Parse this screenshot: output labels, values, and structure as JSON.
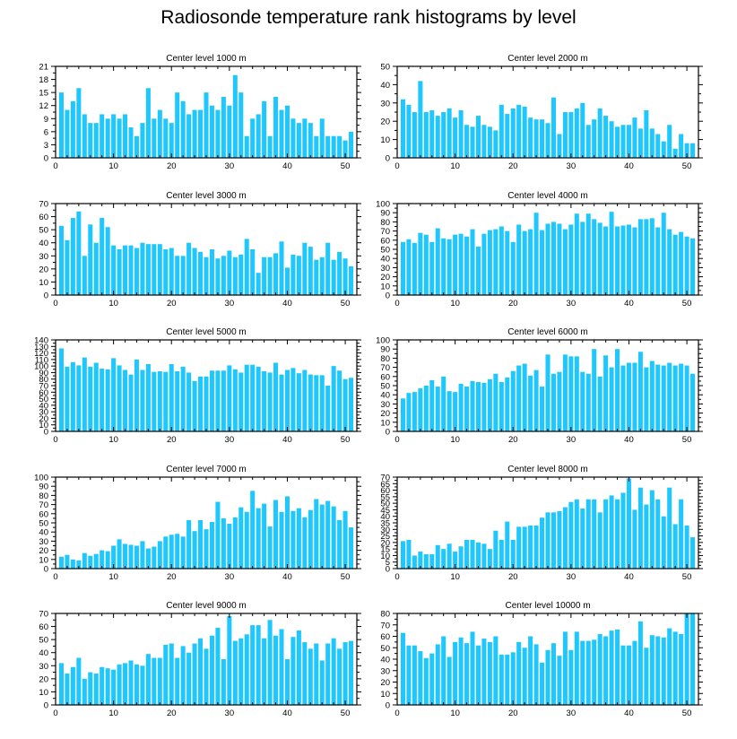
{
  "chart_data": {
    "title": "Radiosonde temperature rank histograms by level",
    "bar_color": "#1ec8ff",
    "panels": [
      {
        "type": "bar",
        "title": "Center level 1000 m",
        "xlim": [
          0,
          52
        ],
        "ylim": [
          0,
          21
        ],
        "xticks": [
          0,
          10,
          20,
          30,
          40,
          50
        ],
        "yticks": [
          0,
          3,
          6,
          9,
          12,
          15,
          18,
          21
        ],
        "x": [
          1,
          2,
          3,
          4,
          5,
          6,
          7,
          8,
          9,
          10,
          11,
          12,
          13,
          14,
          15,
          16,
          17,
          18,
          19,
          20,
          21,
          22,
          23,
          24,
          25,
          26,
          27,
          28,
          29,
          30,
          31,
          32,
          33,
          34,
          35,
          36,
          37,
          38,
          39,
          40,
          41,
          42,
          43,
          44,
          45,
          46,
          47,
          48,
          49,
          50,
          51
        ],
        "values": [
          15,
          11,
          13,
          16,
          10,
          8,
          8,
          10,
          9,
          10,
          9,
          10,
          7,
          5,
          8,
          16,
          9,
          11,
          9,
          8,
          15,
          13,
          10,
          11,
          11,
          15,
          12,
          11,
          14,
          12,
          19,
          15,
          5,
          9,
          10,
          13,
          5,
          14,
          11,
          12,
          9,
          8,
          9,
          8,
          5,
          9,
          5,
          5,
          5,
          4,
          6
        ]
      },
      {
        "type": "bar",
        "title": "Center level 2000 m",
        "xlim": [
          0,
          52
        ],
        "ylim": [
          0,
          50
        ],
        "xticks": [
          0,
          10,
          20,
          30,
          40,
          50
        ],
        "yticks": [
          0,
          10,
          20,
          30,
          40,
          50
        ],
        "x": [
          1,
          2,
          3,
          4,
          5,
          6,
          7,
          8,
          9,
          10,
          11,
          12,
          13,
          14,
          15,
          16,
          17,
          18,
          19,
          20,
          21,
          22,
          23,
          24,
          25,
          26,
          27,
          28,
          29,
          30,
          31,
          32,
          33,
          34,
          35,
          36,
          37,
          38,
          39,
          40,
          41,
          42,
          43,
          44,
          45,
          46,
          47,
          48,
          49,
          50,
          51
        ],
        "values": [
          32,
          29,
          25,
          42,
          25,
          26,
          23,
          25,
          27,
          22,
          26,
          18,
          17,
          23,
          18,
          17,
          15,
          29,
          24,
          27,
          29,
          28,
          22,
          21,
          21,
          19,
          33,
          13,
          25,
          25,
          27,
          30,
          18,
          21,
          27,
          23,
          20,
          17,
          18,
          18,
          22,
          16,
          26,
          16,
          13,
          9,
          18,
          5,
          13,
          8,
          8
        ]
      },
      {
        "type": "bar",
        "title": "Center level 3000 m",
        "xlim": [
          0,
          52
        ],
        "ylim": [
          0,
          70
        ],
        "xticks": [
          0,
          10,
          20,
          30,
          40,
          50
        ],
        "yticks": [
          0,
          10,
          20,
          30,
          40,
          50,
          60,
          70
        ],
        "x": [
          1,
          2,
          3,
          4,
          5,
          6,
          7,
          8,
          9,
          10,
          11,
          12,
          13,
          14,
          15,
          16,
          17,
          18,
          19,
          20,
          21,
          22,
          23,
          24,
          25,
          26,
          27,
          28,
          29,
          30,
          31,
          32,
          33,
          34,
          35,
          36,
          37,
          38,
          39,
          40,
          41,
          42,
          43,
          44,
          45,
          46,
          47,
          48,
          49,
          50,
          51
        ],
        "values": [
          53,
          42,
          59,
          64,
          30,
          54,
          40,
          59,
          52,
          38,
          35,
          38,
          38,
          36,
          40,
          39,
          39,
          39,
          35,
          36,
          30,
          30,
          40,
          36,
          33,
          29,
          35,
          28,
          30,
          34,
          29,
          31,
          43,
          35,
          17,
          29,
          29,
          32,
          41,
          21,
          31,
          30,
          40,
          37,
          27,
          29,
          40,
          27,
          33,
          28,
          22
        ]
      },
      {
        "type": "bar",
        "title": "Center level 4000 m",
        "xlim": [
          0,
          52
        ],
        "ylim": [
          0,
          100
        ],
        "xticks": [
          0,
          10,
          20,
          30,
          40,
          50
        ],
        "yticks": [
          0,
          10,
          20,
          30,
          40,
          50,
          60,
          70,
          80,
          90,
          100
        ],
        "x": [
          1,
          2,
          3,
          4,
          5,
          6,
          7,
          8,
          9,
          10,
          11,
          12,
          13,
          14,
          15,
          16,
          17,
          18,
          19,
          20,
          21,
          22,
          23,
          24,
          25,
          26,
          27,
          28,
          29,
          30,
          31,
          32,
          33,
          34,
          35,
          36,
          37,
          38,
          39,
          40,
          41,
          42,
          43,
          44,
          45,
          46,
          47,
          48,
          49,
          50,
          51
        ],
        "values": [
          58,
          61,
          57,
          68,
          66,
          58,
          73,
          62,
          61,
          66,
          67,
          64,
          72,
          53,
          67,
          71,
          72,
          75,
          70,
          58,
          77,
          70,
          72,
          90,
          71,
          78,
          80,
          78,
          72,
          77,
          89,
          80,
          89,
          83,
          79,
          75,
          91,
          75,
          76,
          77,
          74,
          83,
          83,
          84,
          74,
          90,
          72,
          66,
          69,
          64,
          62
        ]
      },
      {
        "type": "bar",
        "title": "Center level 5000 m",
        "xlim": [
          0,
          52
        ],
        "ylim": [
          0,
          140
        ],
        "xticks": [
          0,
          10,
          20,
          30,
          40,
          50
        ],
        "yticks": [
          0,
          10,
          20,
          30,
          40,
          50,
          60,
          70,
          80,
          90,
          100,
          110,
          120,
          130,
          140
        ],
        "x": [
          1,
          2,
          3,
          4,
          5,
          6,
          7,
          8,
          9,
          10,
          11,
          12,
          13,
          14,
          15,
          16,
          17,
          18,
          19,
          20,
          21,
          22,
          23,
          24,
          25,
          26,
          27,
          28,
          29,
          30,
          31,
          32,
          33,
          34,
          35,
          36,
          37,
          38,
          39,
          40,
          41,
          42,
          43,
          44,
          45,
          46,
          47,
          48,
          49,
          50,
          51
        ],
        "values": [
          127,
          99,
          106,
          101,
          113,
          99,
          105,
          96,
          95,
          112,
          101,
          94,
          87,
          110,
          94,
          103,
          91,
          92,
          91,
          103,
          92,
          99,
          90,
          77,
          84,
          84,
          93,
          93,
          93,
          101,
          95,
          90,
          102,
          102,
          99,
          92,
          90,
          105,
          87,
          94,
          97,
          89,
          94,
          87,
          86,
          86,
          70,
          100,
          93,
          80,
          82
        ]
      },
      {
        "type": "bar",
        "title": "Center level 6000 m",
        "xlim": [
          0,
          52
        ],
        "ylim": [
          0,
          100
        ],
        "xticks": [
          0,
          10,
          20,
          30,
          40,
          50
        ],
        "yticks": [
          0,
          10,
          20,
          30,
          40,
          50,
          60,
          70,
          80,
          90,
          100
        ],
        "x": [
          1,
          2,
          3,
          4,
          5,
          6,
          7,
          8,
          9,
          10,
          11,
          12,
          13,
          14,
          15,
          16,
          17,
          18,
          19,
          20,
          21,
          22,
          23,
          24,
          25,
          26,
          27,
          28,
          29,
          30,
          31,
          32,
          33,
          34,
          35,
          36,
          37,
          38,
          39,
          40,
          41,
          42,
          43,
          44,
          45,
          46,
          47,
          48,
          49,
          50,
          51
        ],
        "values": [
          36,
          42,
          43,
          47,
          50,
          56,
          49,
          60,
          44,
          43,
          52,
          49,
          55,
          54,
          53,
          57,
          63,
          54,
          59,
          66,
          72,
          74,
          61,
          67,
          49,
          84,
          63,
          65,
          84,
          82,
          82,
          65,
          63,
          90,
          60,
          83,
          70,
          90,
          72,
          75,
          75,
          87,
          70,
          77,
          73,
          72,
          75,
          72,
          74,
          72,
          63
        ]
      },
      {
        "type": "bar",
        "title": "Center level 7000 m",
        "xlim": [
          0,
          52
        ],
        "ylim": [
          0,
          100
        ],
        "xticks": [
          0,
          10,
          20,
          30,
          40,
          50
        ],
        "yticks": [
          0,
          10,
          20,
          30,
          40,
          50,
          60,
          70,
          80,
          90,
          100
        ],
        "x": [
          1,
          2,
          3,
          4,
          5,
          6,
          7,
          8,
          9,
          10,
          11,
          12,
          13,
          14,
          15,
          16,
          17,
          18,
          19,
          20,
          21,
          22,
          23,
          24,
          25,
          26,
          27,
          28,
          29,
          30,
          31,
          32,
          33,
          34,
          35,
          36,
          37,
          38,
          39,
          40,
          41,
          42,
          43,
          44,
          45,
          46,
          47,
          48,
          49,
          50,
          51
        ],
        "values": [
          13,
          15,
          10,
          9,
          17,
          14,
          16,
          20,
          19,
          25,
          32,
          27,
          26,
          25,
          30,
          22,
          24,
          30,
          35,
          37,
          38,
          35,
          53,
          41,
          53,
          43,
          51,
          73,
          55,
          49,
          56,
          67,
          62,
          85,
          66,
          71,
          46,
          75,
          62,
          79,
          63,
          66,
          56,
          64,
          76,
          70,
          74,
          68,
          53,
          63,
          45
        ]
      },
      {
        "type": "bar",
        "title": "Center level 8000 m",
        "xlim": [
          0,
          52
        ],
        "ylim": [
          0,
          70
        ],
        "xticks": [
          0,
          10,
          20,
          30,
          40,
          50
        ],
        "yticks": [
          0,
          5,
          10,
          15,
          20,
          25,
          30,
          35,
          40,
          45,
          50,
          55,
          60,
          65,
          70
        ],
        "x": [
          1,
          2,
          3,
          4,
          5,
          6,
          7,
          8,
          9,
          10,
          11,
          12,
          13,
          14,
          15,
          16,
          17,
          18,
          19,
          20,
          21,
          22,
          23,
          24,
          25,
          26,
          27,
          28,
          29,
          30,
          31,
          32,
          33,
          34,
          35,
          36,
          37,
          38,
          39,
          40,
          41,
          42,
          43,
          44,
          45,
          46,
          47,
          48,
          49,
          50,
          51
        ],
        "values": [
          21,
          22,
          10,
          13,
          11,
          11,
          18,
          15,
          19,
          13,
          17,
          22,
          22,
          20,
          19,
          15,
          29,
          22,
          36,
          22,
          32,
          32,
          33,
          33,
          39,
          43,
          43,
          44,
          47,
          51,
          53,
          46,
          53,
          53,
          43,
          53,
          56,
          53,
          58,
          69,
          45,
          62,
          49,
          60,
          53,
          40,
          62,
          34,
          53,
          33,
          24
        ]
      },
      {
        "type": "bar",
        "title": "Center level 9000 m",
        "xlim": [
          0,
          52
        ],
        "ylim": [
          0,
          70
        ],
        "xticks": [
          0,
          10,
          20,
          30,
          40,
          50
        ],
        "yticks": [
          0,
          10,
          20,
          30,
          40,
          50,
          60,
          70
        ],
        "x": [
          1,
          2,
          3,
          4,
          5,
          6,
          7,
          8,
          9,
          10,
          11,
          12,
          13,
          14,
          15,
          16,
          17,
          18,
          19,
          20,
          21,
          22,
          23,
          24,
          25,
          26,
          27,
          28,
          29,
          30,
          31,
          32,
          33,
          34,
          35,
          36,
          37,
          38,
          39,
          40,
          41,
          42,
          43,
          44,
          45,
          46,
          47,
          48,
          49,
          50,
          51
        ],
        "values": [
          32,
          24,
          29,
          36,
          20,
          25,
          24,
          29,
          28,
          27,
          31,
          32,
          34,
          31,
          30,
          39,
          36,
          36,
          46,
          47,
          36,
          45,
          40,
          47,
          51,
          43,
          53,
          59,
          35,
          68,
          49,
          51,
          54,
          61,
          61,
          51,
          65,
          53,
          58,
          35,
          52,
          57,
          48,
          43,
          47,
          34,
          47,
          51,
          43,
          48,
          49
        ]
      },
      {
        "type": "bar",
        "title": "Center level 10000 m",
        "xlim": [
          0,
          52
        ],
        "ylim": [
          0,
          80
        ],
        "xticks": [
          0,
          10,
          20,
          30,
          40,
          50
        ],
        "yticks": [
          0,
          10,
          20,
          30,
          40,
          50,
          60,
          70,
          80
        ],
        "x": [
          1,
          2,
          3,
          4,
          5,
          6,
          7,
          8,
          9,
          10,
          11,
          12,
          13,
          14,
          15,
          16,
          17,
          18,
          19,
          20,
          21,
          22,
          23,
          24,
          25,
          26,
          27,
          28,
          29,
          30,
          31,
          32,
          33,
          34,
          35,
          36,
          37,
          38,
          39,
          40,
          41,
          42,
          43,
          44,
          45,
          46,
          47,
          48,
          49,
          50,
          51
        ],
        "values": [
          63,
          52,
          52,
          47,
          41,
          45,
          53,
          60,
          42,
          55,
          59,
          54,
          64,
          52,
          58,
          55,
          60,
          44,
          44,
          46,
          55,
          50,
          60,
          53,
          37,
          48,
          54,
          43,
          64,
          48,
          64,
          56,
          56,
          57,
          62,
          60,
          65,
          66,
          52,
          52,
          56,
          73,
          50,
          61,
          60,
          59,
          67,
          64,
          62,
          80,
          80
        ]
      }
    ]
  }
}
